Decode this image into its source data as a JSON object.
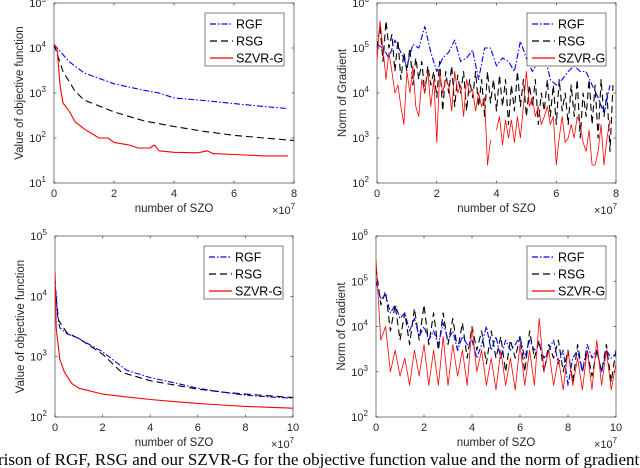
{
  "caption": "rison of RGF, RSG and our SZVR-G for the objective function value and the norm of gradient. x-axi",
  "colors": {
    "RGF": "#0000ff",
    "RSG": "#000000",
    "SZVR-G": "#ff0000"
  },
  "chart_data": [
    {
      "type": "line",
      "title": "",
      "xlabel": "number of SZO",
      "ylabel": "Value of objective function",
      "x_multiplier": "×10^7",
      "xlim": [
        0,
        8
      ],
      "ylim": [
        10,
        100000
      ],
      "yscale": "log",
      "x_ticks": [
        "0",
        "2",
        "4",
        "6",
        "8"
      ],
      "y_tick_exponents": [
        1,
        2,
        3,
        4,
        5
      ],
      "legend_position": "top-right",
      "series": [
        {
          "name": "RGF",
          "style": "dash-dot",
          "points": [
            [
              0,
              12000
            ],
            [
              0.5,
              5000
            ],
            [
              1,
              2800
            ],
            [
              2,
              1600
            ],
            [
              3,
              1150
            ],
            [
              3.5,
              1000
            ],
            [
              4,
              780
            ],
            [
              5,
              680
            ],
            [
              6,
              580
            ],
            [
              7,
              500
            ],
            [
              7.8,
              450
            ]
          ]
        },
        {
          "name": "RSG",
          "style": "dashed",
          "points": [
            [
              0,
              12000
            ],
            [
              0.3,
              3000
            ],
            [
              0.7,
              1100
            ],
            [
              1,
              700
            ],
            [
              2,
              380
            ],
            [
              3,
              240
            ],
            [
              4,
              180
            ],
            [
              5,
              140
            ],
            [
              6,
              115
            ],
            [
              7,
              100
            ],
            [
              8,
              88
            ]
          ]
        },
        {
          "name": "SZVR-G",
          "style": "solid",
          "points": [
            [
              0,
              12000
            ],
            [
              0.1,
              10000
            ],
            [
              0.2,
              1500
            ],
            [
              0.3,
              600
            ],
            [
              0.5,
              400
            ],
            [
              0.7,
              230
            ],
            [
              1,
              160
            ],
            [
              1.5,
              100
            ],
            [
              1.8,
              100
            ],
            [
              2,
              80
            ],
            [
              2.5,
              70
            ],
            [
              2.8,
              60
            ],
            [
              3.2,
              60
            ],
            [
              3.35,
              70
            ],
            [
              3.5,
              52
            ],
            [
              4,
              48
            ],
            [
              4.8,
              47
            ],
            [
              5.1,
              52
            ],
            [
              5.3,
              45
            ],
            [
              6,
              43
            ],
            [
              7,
              40
            ],
            [
              7.8,
              40
            ]
          ]
        }
      ]
    },
    {
      "type": "line",
      "title": "",
      "xlabel": "number of SZO",
      "ylabel": "Norm of Gradient",
      "x_multiplier": "×10^7",
      "xlim": [
        0,
        8
      ],
      "ylim": [
        100,
        1000000
      ],
      "yscale": "log",
      "x_ticks": [
        "0",
        "2",
        "4",
        "6",
        "8"
      ],
      "y_tick_exponents": [
        2,
        3,
        4,
        5,
        6
      ],
      "legend_position": "top-right",
      "series": [
        {
          "name": "RGF",
          "style": "dash-dot",
          "x_start": 0,
          "x_step": 0.2,
          "values": [
            120000,
            100000,
            60000,
            150000,
            80000,
            40000,
            120000,
            100000,
            300000,
            80000,
            30000,
            60000,
            80000,
            150000,
            50000,
            60000,
            90000,
            20000,
            100000,
            100000,
            40000,
            60000,
            50000,
            30000,
            140000,
            60000,
            30000,
            50000,
            80000,
            20000,
            15000,
            20000,
            30000,
            40000,
            30000,
            30000,
            15000,
            8000,
            3500,
            15000
          ]
        },
        {
          "name": "RSG",
          "style": "dashed",
          "x_start": 0,
          "x_step": 0.1,
          "values": [
            100000,
            300000,
            50000,
            400000,
            100000,
            200000,
            30000,
            150000,
            20000,
            80000,
            30000,
            100000,
            15000,
            60000,
            20000,
            50000,
            10000,
            40000,
            15000,
            30000,
            8000,
            50000,
            4000,
            30000,
            10000,
            40000,
            5000,
            25000,
            10000,
            30000,
            4000,
            20000,
            8000,
            30000,
            5000,
            20000,
            3000,
            30000,
            6000,
            20000,
            4000,
            25000,
            5000,
            20000,
            2000,
            15000,
            4000,
            30000,
            5000,
            20000,
            3000,
            15000,
            5000,
            20000,
            2000,
            10000,
            4000,
            20000,
            3000,
            15000,
            2000,
            20000,
            4000,
            10000,
            2000,
            15000,
            3000,
            20000,
            1000,
            10000,
            3000,
            20000,
            2000,
            15000,
            1000,
            20000,
            3000,
            10000,
            500,
            15000
          ]
        },
        {
          "name": "SZVR-G",
          "style": "solid",
          "x_start": 0,
          "x_step": 0.1,
          "values": [
            50000,
            400000,
            100000,
            20000,
            80000,
            30000,
            10000,
            15000,
            5000,
            2000,
            30000,
            10000,
            40000,
            5000,
            3000,
            20000,
            10000,
            30000,
            5000,
            20000,
            800,
            30000,
            10000,
            20000,
            15000,
            4000,
            30000,
            10000,
            15000,
            3000,
            20000,
            10000,
            12000,
            4000,
            10000,
            5000,
            8000,
            250,
            900,
            null,
            1500,
            3000,
            700,
            2500,
            1000,
            2500,
            800,
            3000,
            1000,
            5000,
            30000,
            5000,
            8000,
            3000,
            5000,
            2000,
            3000,
            5000,
            2000,
            3000,
            250,
            1000,
            3000,
            800,
            1000,
            2000,
            1000,
            3000,
            2000,
            800,
            500,
            1500,
            250,
            250,
            500,
            2000,
            250,
            1000,
            2500
          ]
        }
      ]
    },
    {
      "type": "line",
      "title": "",
      "xlabel": "number of SZO",
      "ylabel": "Value of objective function",
      "x_multiplier": "×10^7",
      "xlim": [
        0,
        10
      ],
      "ylim": [
        100,
        100000
      ],
      "yscale": "log",
      "x_ticks": [
        "0",
        "2",
        "4",
        "6",
        "8",
        "10"
      ],
      "y_tick_exponents": [
        2,
        3,
        4,
        5
      ],
      "legend_position": "top-right",
      "series": [
        {
          "name": "RGF",
          "style": "dash-dot",
          "points": [
            [
              0,
              20000
            ],
            [
              0.1,
              5000
            ],
            [
              0.2,
              3000
            ],
            [
              0.5,
              2400
            ],
            [
              1,
              2000
            ],
            [
              2,
              1200
            ],
            [
              3,
              600
            ],
            [
              4,
              450
            ],
            [
              5,
              370
            ],
            [
              6,
              300
            ],
            [
              7,
              260
            ],
            [
              8,
              230
            ],
            [
              9,
              215
            ],
            [
              10,
              205
            ]
          ]
        },
        {
          "name": "RSG",
          "style": "dashed",
          "points": [
            [
              0,
              15000
            ],
            [
              0.15,
              4000
            ],
            [
              0.5,
              2500
            ],
            [
              1,
              2000
            ],
            [
              2,
              1100
            ],
            [
              2.8,
              550
            ],
            [
              4,
              400
            ],
            [
              5,
              340
            ],
            [
              6,
              290
            ],
            [
              7,
              260
            ],
            [
              8,
              240
            ],
            [
              9,
              225
            ],
            [
              10,
              210
            ]
          ]
        },
        {
          "name": "SZVR-G",
          "style": "solid",
          "points": [
            [
              0,
              25000
            ],
            [
              0.05,
              3000
            ],
            [
              0.2,
              900
            ],
            [
              0.4,
              550
            ],
            [
              0.7,
              360
            ],
            [
              1,
              300
            ],
            [
              2,
              240
            ],
            [
              3,
              215
            ],
            [
              4,
              195
            ],
            [
              5,
              180
            ],
            [
              6,
              168
            ],
            [
              7,
              158
            ],
            [
              8,
              150
            ],
            [
              9,
              145
            ],
            [
              10,
              140
            ]
          ]
        }
      ]
    },
    {
      "type": "line",
      "title": "",
      "xlabel": "number of SZO",
      "ylabel": "Norm of Gradient",
      "x_multiplier": "×10^7",
      "xlim": [
        0,
        10
      ],
      "ylim": [
        100,
        1000000
      ],
      "yscale": "log",
      "x_ticks": [
        "0",
        "2",
        "4",
        "6",
        "8",
        "10"
      ],
      "y_tick_exponents": [
        2,
        3,
        4,
        5,
        6
      ],
      "legend_position": "top-right",
      "series": [
        {
          "name": "RGF",
          "style": "dash-dot",
          "x_start": 0,
          "x_step": 0.2,
          "values": [
            100000,
            40000,
            50000,
            20000,
            30000,
            15000,
            20000,
            8000,
            15000,
            6000,
            10000,
            5000,
            8000,
            4000,
            12000,
            5000,
            8000,
            3000,
            6000,
            4000,
            5000,
            2000,
            4000,
            10000,
            3000,
            6000,
            2000,
            5000,
            3000,
            4000,
            6000,
            2000,
            5000,
            3000,
            4000,
            2000,
            3000,
            5000,
            1500,
            3000,
            500,
            2000,
            3000,
            1000,
            4000,
            2000,
            3000,
            1000,
            3000,
            2000,
            2500
          ]
        },
        {
          "name": "RSG",
          "style": "dashed",
          "x_start": 0,
          "x_step": 0.2,
          "values": [
            200000,
            30000,
            60000,
            8000,
            30000,
            5000,
            20000,
            4000,
            25000,
            5000,
            30000,
            4000,
            20000,
            3000,
            20000,
            4000,
            15000,
            3000,
            12000,
            2000,
            10000,
            3000,
            8000,
            1500,
            8000,
            2000,
            6000,
            1000,
            5000,
            2000,
            6000,
            1000,
            8000,
            2000,
            5000,
            1000,
            4000,
            2000,
            5000,
            1000,
            3000,
            600,
            4000,
            1000,
            3000,
            800,
            3000,
            1000,
            4000,
            600,
            3000
          ]
        },
        {
          "name": "SZVR-G",
          "style": "solid",
          "x_start": 0,
          "x_step": 0.2,
          "values": [
            300000,
            5000,
            10000,
            1000,
            3000,
            800,
            2000,
            500,
            3000,
            800,
            4000,
            500,
            3000,
            500,
            6000,
            500,
            4000,
            800,
            3000,
            500,
            10000,
            1000,
            3000,
            500,
            2000,
            400,
            3000,
            500,
            2000,
            400,
            4000,
            500,
            3000,
            500,
            15000,
            1000,
            3000,
            500,
            2000,
            400,
            3000,
            500,
            2000,
            400,
            3000,
            400,
            5000,
            500,
            3000,
            400,
            1500
          ]
        }
      ]
    }
  ]
}
